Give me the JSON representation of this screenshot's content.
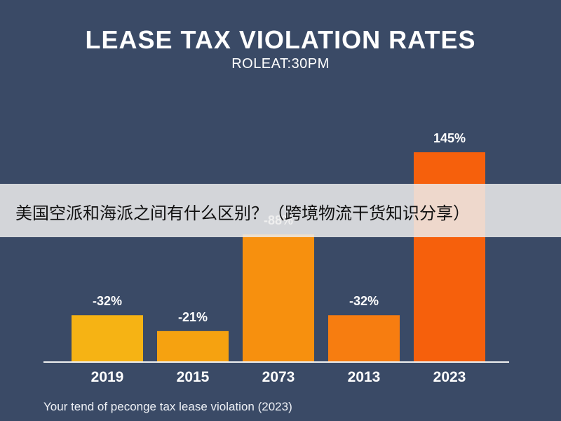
{
  "chart_data": {
    "type": "bar",
    "title": "LEASE TAX VIOLATION RATES",
    "subtitle": "ROLEAT:30PM",
    "caption": "Your tend of peconge tax lease violation (2023)",
    "categories": [
      "2019",
      "2015",
      "2073",
      "2013",
      "2023"
    ],
    "values": [
      -32,
      -21,
      -88,
      -32,
      145
    ],
    "data_labels": [
      "-32%",
      "-21%",
      "-88%",
      "-32%",
      "145%"
    ],
    "bar_colors": [
      "#f6b314",
      "#f6a210",
      "#f7900e",
      "#f77d10",
      "#f6600c"
    ],
    "grid": false,
    "legend": "none"
  },
  "overlay": {
    "text": "美国空派和海派之间有什么区别？（跨境物流干货知识分享）",
    "background": "#ececec"
  },
  "colors": {
    "background": "#3a4a66",
    "text": "#ffffff",
    "baseline": "#f0f0f0"
  }
}
